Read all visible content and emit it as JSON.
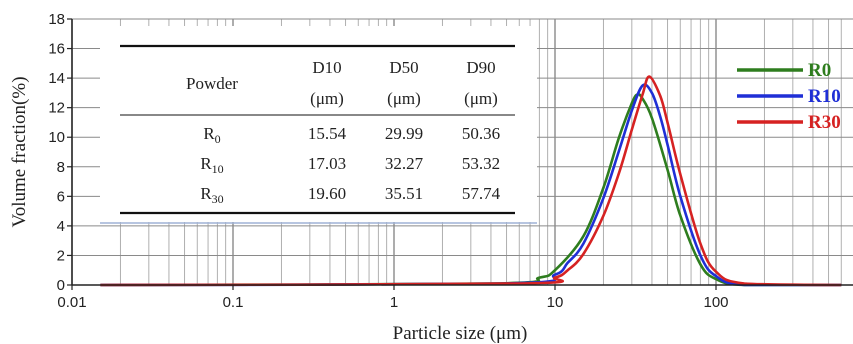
{
  "chart_data": {
    "type": "line",
    "xlabel": "Particle size (μm)",
    "ylabel": "Volume fraction(%)",
    "xscale": "log",
    "xlim": [
      0.01,
      600
    ],
    "ylim": [
      0,
      18
    ],
    "xticks": [
      0.01,
      0.1,
      1,
      10,
      100
    ],
    "xtick_labels": [
      "0.01",
      "0.1",
      "1",
      "10",
      "100"
    ],
    "yticks": [
      0,
      2,
      4,
      6,
      8,
      10,
      12,
      14,
      16,
      18
    ],
    "ytick_labels": [
      "0",
      "2",
      "4",
      "6",
      "8",
      "10",
      "12",
      "14",
      "16",
      "18"
    ],
    "grid": true,
    "legend_position": "top-right",
    "series": [
      {
        "name": "R0",
        "color": "#2e7d1e",
        "peak_x": 32.5,
        "peak_y": 12.9,
        "x": [
          0.015,
          4,
          8,
          10,
          15,
          20,
          25,
          30,
          32.5,
          35,
          40,
          50,
          60,
          80,
          100,
          150,
          600
        ],
        "y": [
          0,
          0.1,
          0.5,
          1.0,
          3.3,
          6.6,
          10.0,
          12.3,
          12.9,
          12.6,
          11.3,
          7.8,
          4.7,
          1.4,
          0.4,
          0,
          0
        ]
      },
      {
        "name": "R10",
        "color": "#1f2fd6",
        "peak_x": 35,
        "peak_y": 13.5,
        "x": [
          0.015,
          5,
          10,
          12,
          15,
          20,
          25,
          30,
          35,
          40,
          45,
          50,
          60,
          80,
          100,
          150,
          600
        ],
        "y": [
          0,
          0.1,
          0.7,
          1.5,
          2.8,
          5.9,
          9.1,
          11.8,
          13.5,
          13.0,
          11.4,
          9.5,
          6.0,
          2.0,
          0.6,
          0,
          0
        ]
      },
      {
        "name": "R30",
        "color": "#d62222",
        "peak_x": 38.5,
        "peak_y": 14.1,
        "x": [
          0.015,
          6,
          10,
          12,
          15,
          20,
          25,
          30,
          35,
          38.5,
          45,
          50,
          60,
          80,
          100,
          150,
          600
        ],
        "y": [
          0,
          0.1,
          0.5,
          1.0,
          2.1,
          4.7,
          7.6,
          10.5,
          12.9,
          14.1,
          12.8,
          11.0,
          7.5,
          2.8,
          0.9,
          0.1,
          0
        ]
      }
    ],
    "table": {
      "header_row1": [
        "Powder",
        "D10",
        "D50",
        "D90"
      ],
      "header_row2": [
        "",
        "(μm)",
        "(μm)",
        "(μm)"
      ],
      "rows": [
        {
          "base": "R",
          "sub": "0",
          "d10": "15.54",
          "d50": "29.99",
          "d90": "50.36"
        },
        {
          "base": "R",
          "sub": "10",
          "d10": "17.03",
          "d50": "32.27",
          "d90": "53.32"
        },
        {
          "base": "R",
          "sub": "30",
          "d10": "19.60",
          "d50": "35.51",
          "d90": "57.74"
        }
      ]
    }
  }
}
